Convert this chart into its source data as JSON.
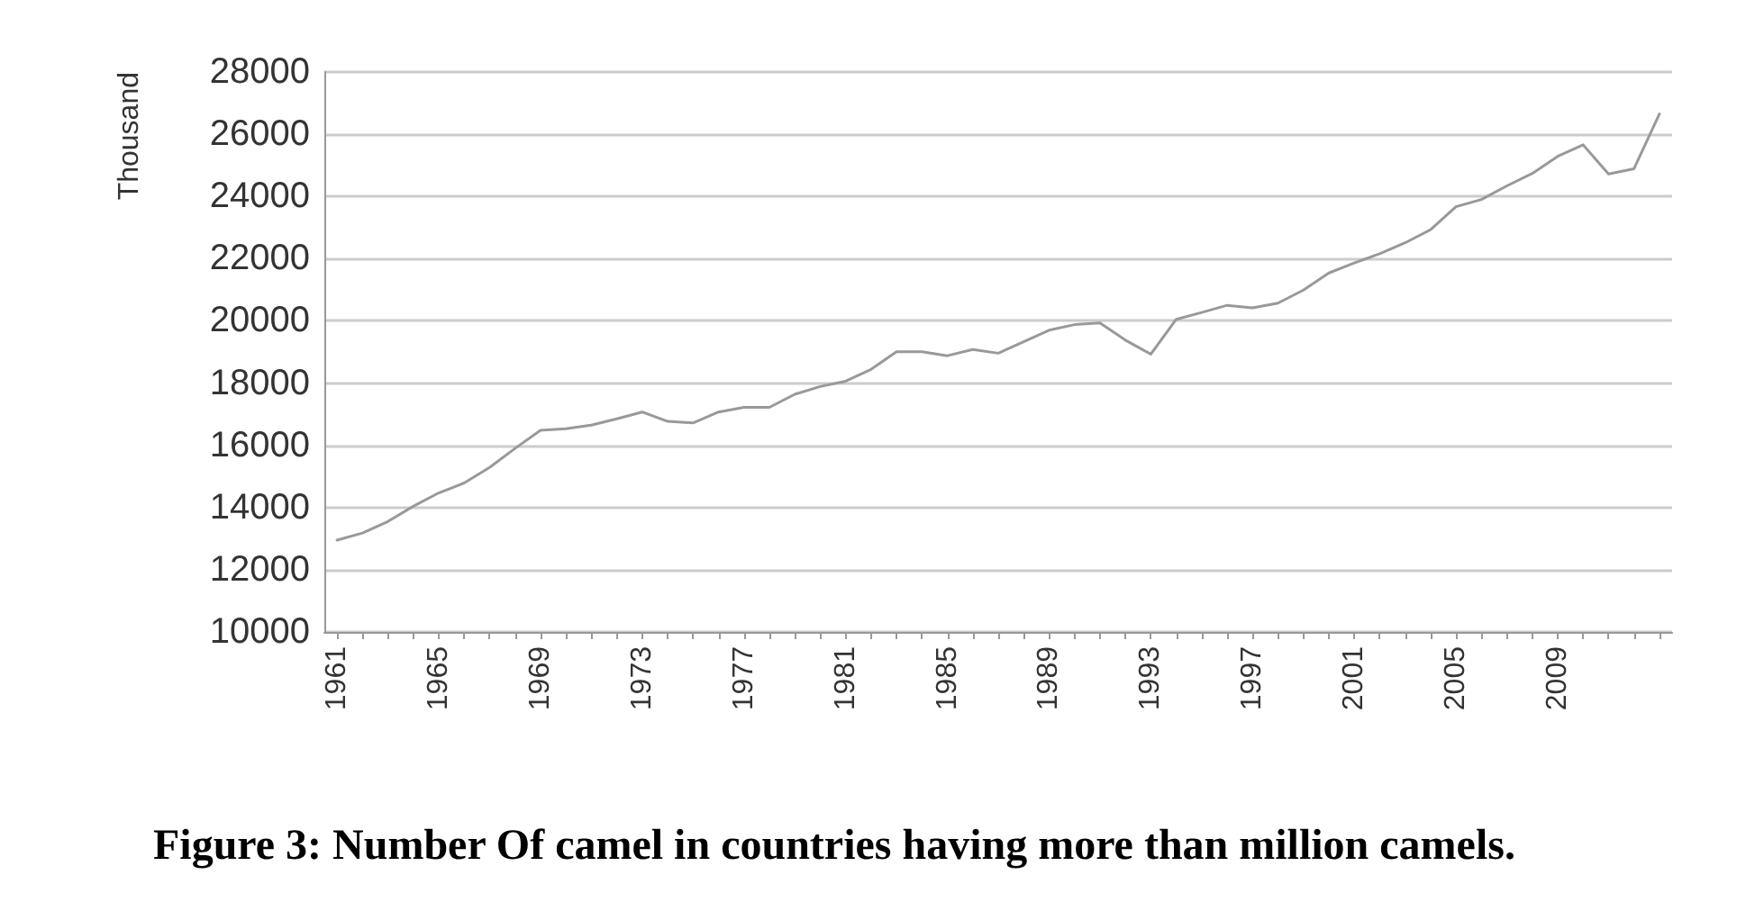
{
  "chart_data": {
    "type": "line",
    "title": "Figure 3: Number Of camel in countries having more than million camels.",
    "ylabel": "Thousand",
    "x": [
      1961,
      1962,
      1963,
      1964,
      1965,
      1966,
      1967,
      1968,
      1969,
      1970,
      1971,
      1972,
      1973,
      1974,
      1975,
      1976,
      1977,
      1978,
      1979,
      1980,
      1981,
      1982,
      1983,
      1984,
      1985,
      1986,
      1987,
      1988,
      1989,
      1990,
      1991,
      1992,
      1993,
      1994,
      1995,
      1996,
      1997,
      1998,
      1999,
      2000,
      2001,
      2002,
      2003,
      2004,
      2005,
      2006,
      2007,
      2008,
      2009,
      2010,
      2011,
      2012,
      2013
    ],
    "series": [
      {
        "color": "#999999",
        "values": [
          12950,
          13180,
          13550,
          14040,
          14470,
          14790,
          15290,
          15900,
          16480,
          16530,
          16650,
          16850,
          17070,
          16770,
          16720,
          17070,
          17220,
          17220,
          17640,
          17890,
          18060,
          18440,
          19010,
          19010,
          18880,
          19080,
          18960,
          19330,
          19700,
          19880,
          19930,
          19380,
          18930,
          20050,
          20270,
          20500,
          20420,
          20570,
          20990,
          21540,
          21860,
          22160,
          22510,
          22930,
          23670,
          23900,
          24340,
          24740,
          25290,
          25660,
          24720,
          24890,
          26650
        ]
      }
    ],
    "xlim": [
      1960.5,
      2013.5
    ],
    "xticks": [
      1961,
      {
        "value": 1962,
        "label": null
      },
      {
        "value": 1963,
        "label": null
      },
      {
        "value": 1964,
        "label": null
      },
      1965,
      {
        "value": 1966,
        "label": null
      },
      {
        "value": 1967,
        "label": null
      },
      {
        "value": 1968,
        "label": null
      },
      1969,
      {
        "value": 1970,
        "label": null
      },
      {
        "value": 1971,
        "label": null
      },
      {
        "value": 1972,
        "label": null
      },
      1973,
      {
        "value": 1974,
        "label": null
      },
      {
        "value": 1975,
        "label": null
      },
      {
        "value": 1976,
        "label": null
      },
      1977,
      {
        "value": 1978,
        "label": null
      },
      {
        "value": 1979,
        "label": null
      },
      {
        "value": 1980,
        "label": null
      },
      1981,
      {
        "value": 1982,
        "label": null
      },
      {
        "value": 1983,
        "label": null
      },
      {
        "value": 1984,
        "label": null
      },
      1985,
      {
        "value": 1986,
        "label": null
      },
      {
        "value": 1987,
        "label": null
      },
      {
        "value": 1988,
        "label": null
      },
      1989,
      {
        "value": 1990,
        "label": null
      },
      {
        "value": 1991,
        "label": null
      },
      {
        "value": 1992,
        "label": null
      },
      1993,
      {
        "value": 1994,
        "label": null
      },
      {
        "value": 1995,
        "label": null
      },
      {
        "value": 1996,
        "label": null
      },
      1997,
      {
        "value": 1998,
        "label": null
      },
      {
        "value": 1999,
        "label": null
      },
      {
        "value": 2000,
        "label": null
      },
      2001,
      {
        "value": 2002,
        "label": null
      },
      {
        "value": 2003,
        "label": null
      },
      {
        "value": 2004,
        "label": null
      },
      2005,
      {
        "value": 2006,
        "label": null
      },
      {
        "value": 2007,
        "label": null
      },
      {
        "value": 2008,
        "label": null
      },
      2009,
      {
        "value": 2010,
        "label": null
      },
      {
        "value": 2011,
        "label": null
      },
      {
        "value": 2012,
        "label": null
      },
      {
        "value": 2013,
        "label": null
      }
    ],
    "ylim": [
      10000,
      28000
    ],
    "yticks": [
      10000,
      12000,
      14000,
      16000,
      18000,
      20000,
      22000,
      24000,
      26000,
      28000
    ],
    "grid": "y",
    "marker": "none",
    "line_style": "solid"
  }
}
